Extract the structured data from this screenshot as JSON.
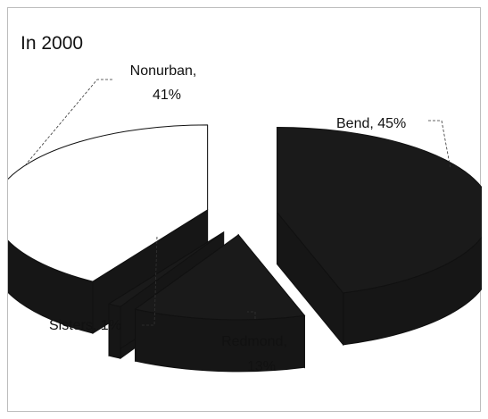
{
  "chart_data": {
    "type": "pie",
    "title": "In 2000",
    "categories": [
      "Bend",
      "Redmond",
      "Sisters",
      "Nonurban"
    ],
    "values": [
      45,
      13,
      1,
      41
    ],
    "labels": [
      "Bend, 45%",
      "Redmond,",
      "13%",
      "Sisters, 1%",
      "Nonurban,",
      "41%"
    ],
    "exploded": true,
    "three_d": true,
    "colors": {
      "Bend": "#1a1a1a",
      "Redmond": "#1a1a1a",
      "Sisters": "#1a1a1a",
      "Nonurban": "#ffffff",
      "edge": "#111111"
    },
    "legend": "none"
  }
}
